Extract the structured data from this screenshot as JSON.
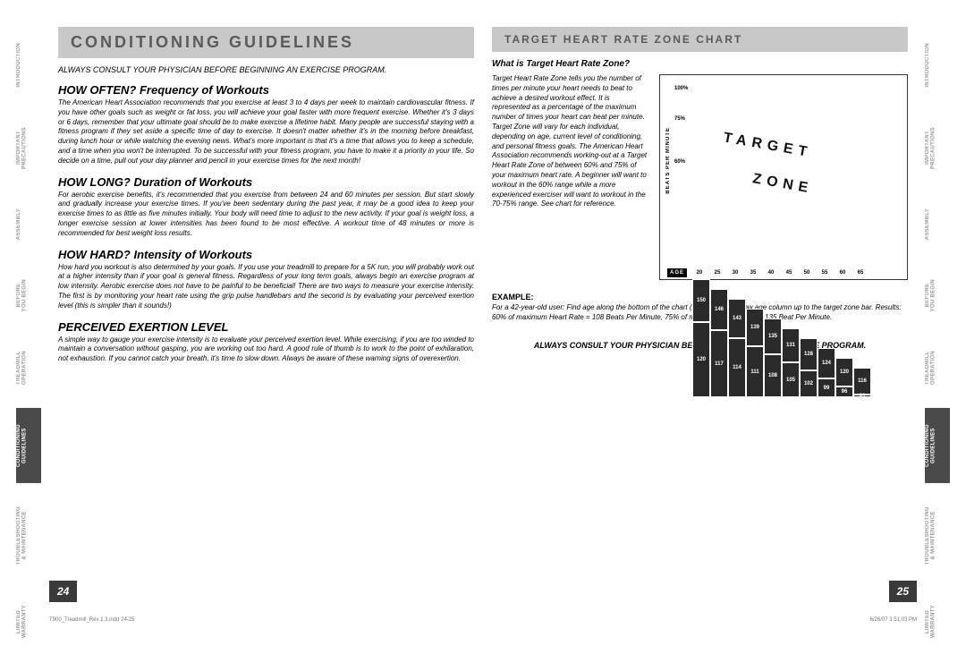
{
  "tabs": [
    "INTRODUCTION",
    "IMPORTANT\nPRECAUTIONS",
    "ASSEMBLY",
    "BEFORE\nYOU BEGIN",
    "TREADMILL\nOPERATION",
    "CONDITIONING\nGUIDELINES",
    "TROUBLESHOOTING\n& MAINTENANCE",
    "LIMITED\nWARRANTY"
  ],
  "activeTab": 5,
  "left": {
    "ribbon": "CONDITIONING GUIDELINES",
    "consult": "ALWAYS CONSULT YOUR PHYSICIAN BEFORE BEGINNING AN EXERCISE PROGRAM.",
    "s1h": "HOW OFTEN? Frequency of Workouts",
    "s1": "The American Heart Association recommends that you exercise at least 3 to 4 days per week to maintain cardiovascular fitness. If you have other goals such as weight or fat loss, you will achieve your goal faster with more frequent exercise. Whether it's 3 days or 6 days, remember that your ultimate goal should be to make exercise a lifetime habit. Many people are successful staying with a fitness program if they set aside a specific time of day to exercise. It doesn't matter whether it's in the morning before breakfast, during lunch hour or while watching the evening news. What's more important is that it's a time that allows you to keep a schedule, and a time when you won't be interrupted. To be successful with your fitness program, you have to make it a priority in your life. So decide on a time, pull out your day planner and pencil in your exercise times for the next month!",
    "s2h": "HOW LONG? Duration of Workouts",
    "s2": "For aerobic exercise benefits, it's recommended that you exercise from between 24 and 60 minutes per session. But start slowly and gradually increase your exercise times. If you've been sedentary during the past year, it may be a good idea to keep your exercise times to as little as five minutes initially. Your body will need time to adjust to the new activity. If your goal is weight loss, a longer exercise session at lower intensities has been found to be most effective. A workout time of 48 minutes or more is recommended for best weight loss results.",
    "s3h": "HOW HARD? Intensity of Workouts",
    "s3": "How hard you workout is also determined by your goals. If you use your treadmill to prepare for a 5K run, you will probably work out at a higher intensity than if your goal is general fitness. Regardless of your long term goals, always begin an exercise program at low intensity. Aerobic exercise does not have to be painful to be beneficial! There are two ways to measure your exercise intensity. The first is by monitoring your heart rate using the grip pulse handlebars and the second is by evaluating your perceived exertion level (this is simpler than it sounds!)",
    "s4h": "PERCEIVED EXERTION LEVEL",
    "s4": "A simple way to gauge your exercise intensity is to evaluate your perceived exertion level. While exercising, if you are too winded to maintain a conversation without gasping, you are working out too hard. A good rule of thumb is to work to the point of exhilaration, not exhaustion. If you cannot catch your breath, it's time to slow down. Always be aware of these warning signs of overexertion.",
    "pageNum": "24"
  },
  "right": {
    "ribbon": "TARGET HEART RATE ZONE CHART",
    "subH": "What is Target Heart Rate Zone?",
    "desc": "Target Heart Rate Zone tells you the number of times per minute your heart needs to beat to achieve a desired workout effect. It is represented as a percentage of the maximum number of times your heart can beat per minute. Target Zone will vary for each individual, depending on age, current level of conditioning, and personal fitness goals. The American Heart Association recommends working-out at a Target Heart Rate Zone of between 60% and 75% of your maximum heart rate. A beginner will want to workout in the 60% range while a more experienced exerciser will want to workout in the 70-75% range. See chart for reference.",
    "chart": {
      "yaxis": "BEATS PER MINUTE",
      "pct": {
        "p100": "100%",
        "p75": "75%",
        "p60": "60%"
      },
      "ages": [
        "20",
        "25",
        "30",
        "35",
        "40",
        "45",
        "50",
        "55",
        "60",
        "65"
      ],
      "row75": [
        "150",
        "146",
        "143",
        "139",
        "135",
        "131",
        "128",
        "124",
        "120",
        "116"
      ],
      "row60": [
        "120",
        "117",
        "114",
        "111",
        "108",
        "105",
        "102",
        "99",
        "96",
        "93"
      ],
      "target": "TARGET",
      "zone": "ZONE",
      "ageLabel": "AGE",
      "barColor": "#2a2a2a",
      "bgColor": "#ffffff"
    },
    "exH": "EXAMPLE:",
    "ex": "For a 42-year-old user: Find age along the bottom of the chart (round to 40), follow age column up to the target zone bar. Results: 60% of maximum Heart Rate = 108 Beats Per Minute, 75% of maximum Heart Rate = 135 Beat Per Minute.",
    "consult2": "ALWAYS CONSULT YOUR PHYSICIAN BEFORE BEGINNING AN EXERCISE PROGRAM.",
    "pageNum": "25"
  },
  "footer": {
    "left": "T900_Treadmill_Rev 1 3.indd   24-25",
    "right": "6/26/07   3:51:03 PM"
  }
}
